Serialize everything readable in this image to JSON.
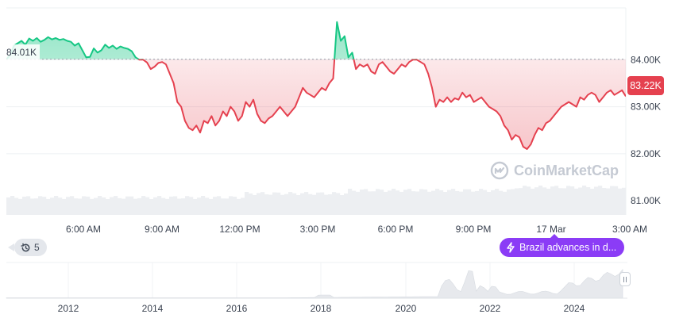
{
  "chart_data": [
    {
      "type": "line",
      "yticks": [
        "84.00K",
        "83.00K",
        "82.00K",
        "81.00K"
      ],
      "ytick_values": [
        84000,
        83000,
        82000,
        81000
      ],
      "xticks": [
        "6:00 AM",
        "9:00 AM",
        "12:00 PM",
        "3:00 PM",
        "6:00 PM",
        "9:00 PM",
        "17 Mar",
        "3:00 AM"
      ],
      "ylim": [
        80700,
        85100
      ],
      "baseline": 84010,
      "baseline_label": "84.01K",
      "current_price": 83220,
      "current_price_label": "83.22K",
      "up_color": "#16c784",
      "down_color": "#e5414f",
      "grid": true,
      "series": [
        {
          "values": [
            84010,
            84100,
            84300,
            84350,
            84400,
            84320,
            84450,
            84400,
            84460,
            84380,
            84420,
            84480,
            84430,
            84460,
            84420,
            84440,
            84400,
            84380,
            84300,
            84350,
            84200,
            84050,
            84060,
            84240,
            84150,
            84200,
            84320,
            84250,
            84300,
            84230,
            84280,
            84250,
            84230,
            84180,
            84050,
            84000,
            84000,
            83940,
            83800,
            83850,
            83930,
            83950,
            83900,
            83700,
            83500,
            83100,
            83000,
            82700,
            82550,
            82500,
            82600,
            82450,
            82700,
            82650,
            82800,
            82600,
            82700,
            82900,
            82800,
            83000,
            82900,
            82700,
            82800,
            83100,
            83000,
            83150,
            82850,
            82700,
            82650,
            82750,
            82800,
            82900,
            83000,
            82900,
            82800,
            82900,
            83000,
            83200,
            83400,
            83300,
            83250,
            83200,
            83300,
            83400,
            83350,
            83500,
            83600,
            84800,
            84400,
            84500,
            84050,
            84150,
            83800,
            83900,
            83850,
            83900,
            83750,
            83700,
            83900,
            83950,
            83850,
            83750,
            83700,
            83800,
            83900,
            83850,
            83950,
            84000,
            84000,
            83950,
            83900,
            83700,
            83400,
            83000,
            83150,
            83100,
            83200,
            83100,
            83180,
            83150,
            83300,
            83200,
            83250,
            83100,
            83150,
            83200,
            83100,
            83000,
            82950,
            82900,
            82800,
            82600,
            82500,
            82300,
            82400,
            82350,
            82150,
            82100,
            82200,
            82400,
            82550,
            82500,
            82650,
            82700,
            82800,
            82900,
            83000,
            83050,
            83100,
            83050,
            83000,
            83200,
            83150,
            83250,
            83300,
            83250,
            83100,
            83200,
            83300,
            83350,
            83250,
            83300,
            83350,
            83220
          ]
        }
      ]
    },
    {
      "type": "area",
      "xticks": [
        "2012",
        "2014",
        "2016",
        "2018",
        "2020",
        "2022",
        "2024"
      ]
    }
  ],
  "ui": {
    "history_count": "5",
    "news_text": "Brazil advances in d...",
    "watermark_text": "CoinMarketCap"
  }
}
